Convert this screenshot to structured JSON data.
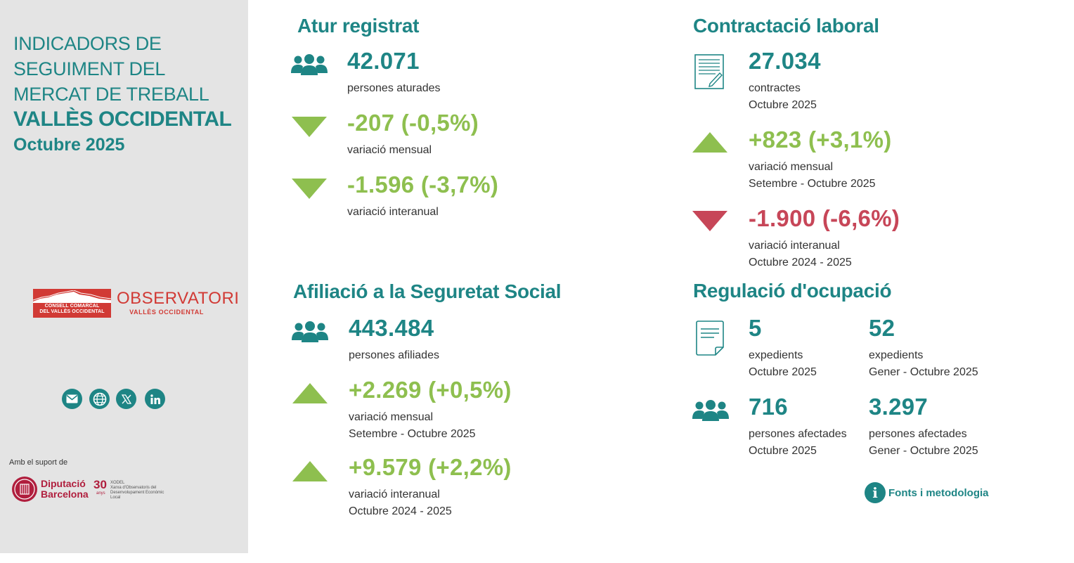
{
  "sidebar": {
    "title_lines": [
      "INDICADORS DE",
      "SEGUIMENT DEL",
      "MERCAT DE TREBALL"
    ],
    "region": "VALLÈS OCCIDENTAL",
    "period": "Octubre 2025",
    "logo_ccvo": [
      "CONSELL COMARCAL",
      "DEL VALLÈS OCCIDENTAL"
    ],
    "logo_obs": [
      "OBSERVATORI",
      "VALLÈS OCCIDENTAL"
    ],
    "social_icons": [
      "mail-icon",
      "web-icon",
      "x-icon",
      "linkedin-icon"
    ],
    "support_label": "Amb el suport de",
    "dipu": [
      "Diputació",
      "Barcelona"
    ],
    "xodel": {
      "num": "30",
      "any": "anys",
      "lines": [
        "XODEL",
        "Xarxa d'Observatoris del",
        "Desenvolupament Econòmic Local"
      ]
    }
  },
  "atur": {
    "title": "Atur registrat",
    "value": "42.071",
    "value_label": "persones aturades",
    "monthly": "-207 (-0,5%)",
    "monthly_label": "variació mensual",
    "yearly": "-1.596 (-3,7%)",
    "yearly_label": "variació interanual"
  },
  "contractacio": {
    "title": "Contractació laboral",
    "value": "27.034",
    "value_label": "contractes",
    "value_period": "Octubre 2025",
    "monthly": "+823 (+3,1%)",
    "monthly_label": "variació mensual",
    "monthly_period": "Setembre - Octubre 2025",
    "yearly": "-1.900 (-6,6%)",
    "yearly_label": "variació interanual",
    "yearly_period": "Octubre 2024 - 2025"
  },
  "afiliacio": {
    "title": "Afiliació a la Seguretat Social",
    "value": "443.484",
    "value_label": "persones afiliades",
    "monthly": "+2.269 (+0,5%)",
    "monthly_label": "variació mensual",
    "monthly_period": "Setembre - Octubre 2025",
    "yearly": "+9.579 (+2,2%)",
    "yearly_label": "variació interanual",
    "yearly_period": "Octubre 2024 - 2025"
  },
  "regulacio": {
    "title": "Regulació d'ocupació",
    "exp_month": "5",
    "exp_month_label": "expedients",
    "exp_month_period": "Octubre 2025",
    "exp_ytd": "52",
    "exp_ytd_label": "expedients",
    "exp_ytd_period": "Gener - Octubre 2025",
    "pers_month": "716",
    "pers_month_label": "persones afectades",
    "pers_month_period": "Octubre 2025",
    "pers_ytd": "3.297",
    "pers_ytd_label": "persones afectades",
    "pers_ytd_period": "Gener - Octubre 2025"
  },
  "fonts_link": "Fonts i metodologia",
  "colors": {
    "teal": "#1e8585",
    "green": "#8ebf4f",
    "red": "#c74658",
    "sidebar_bg": "#e4e4e4"
  }
}
